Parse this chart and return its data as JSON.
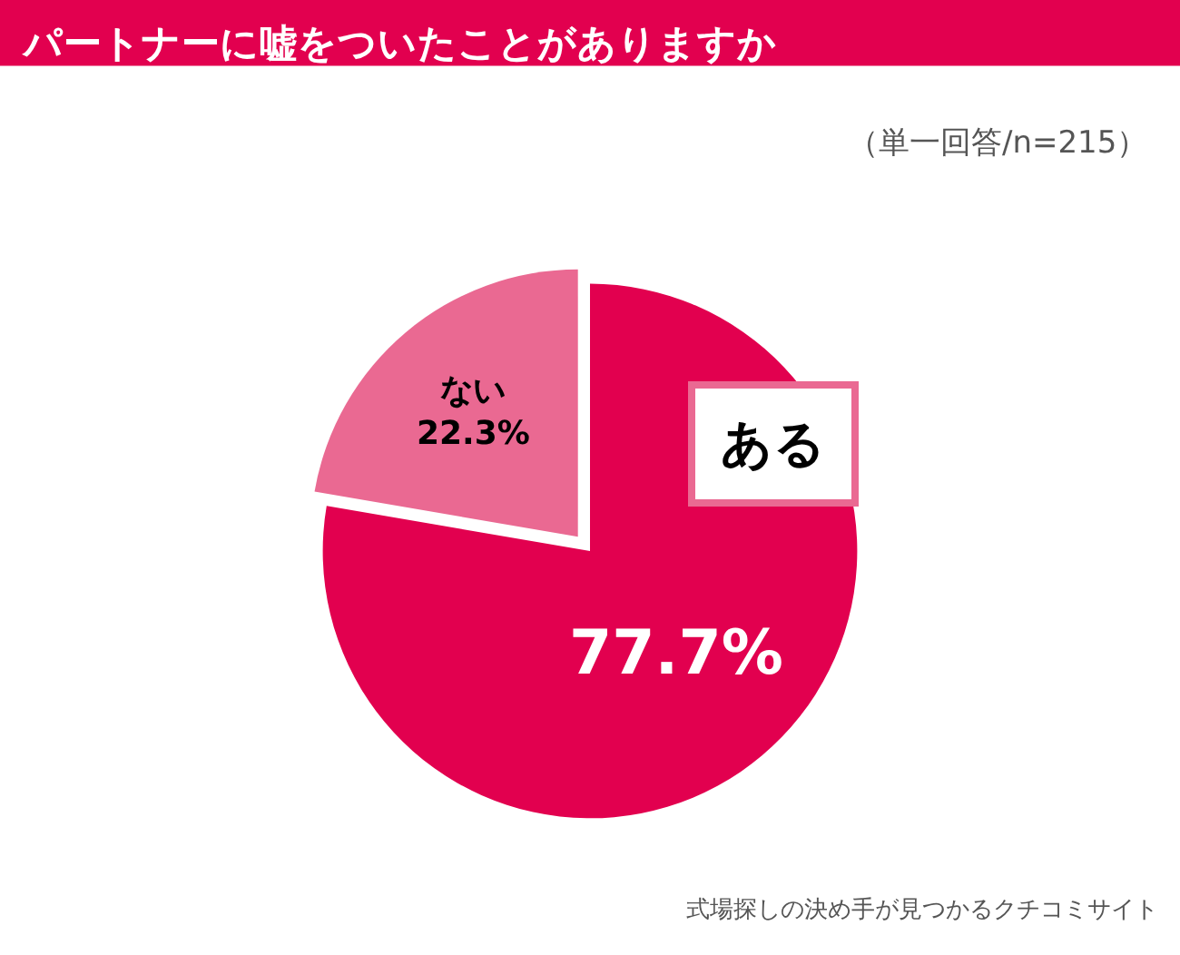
{
  "chart_data": {
    "type": "pie",
    "title": "パートナーに嘘をついたことがありますか",
    "subtitle": "（単一回答/n=215）",
    "categories": [
      "ない",
      "ある"
    ],
    "values": [
      22.3,
      77.7
    ],
    "colors": [
      "#ea6992",
      "#e2004f"
    ],
    "value_labels": [
      "22.3%",
      "77.7%"
    ],
    "legend": false,
    "annotations": [
      "式場探しの決め手が見つかるクチコミサイト"
    ]
  }
}
